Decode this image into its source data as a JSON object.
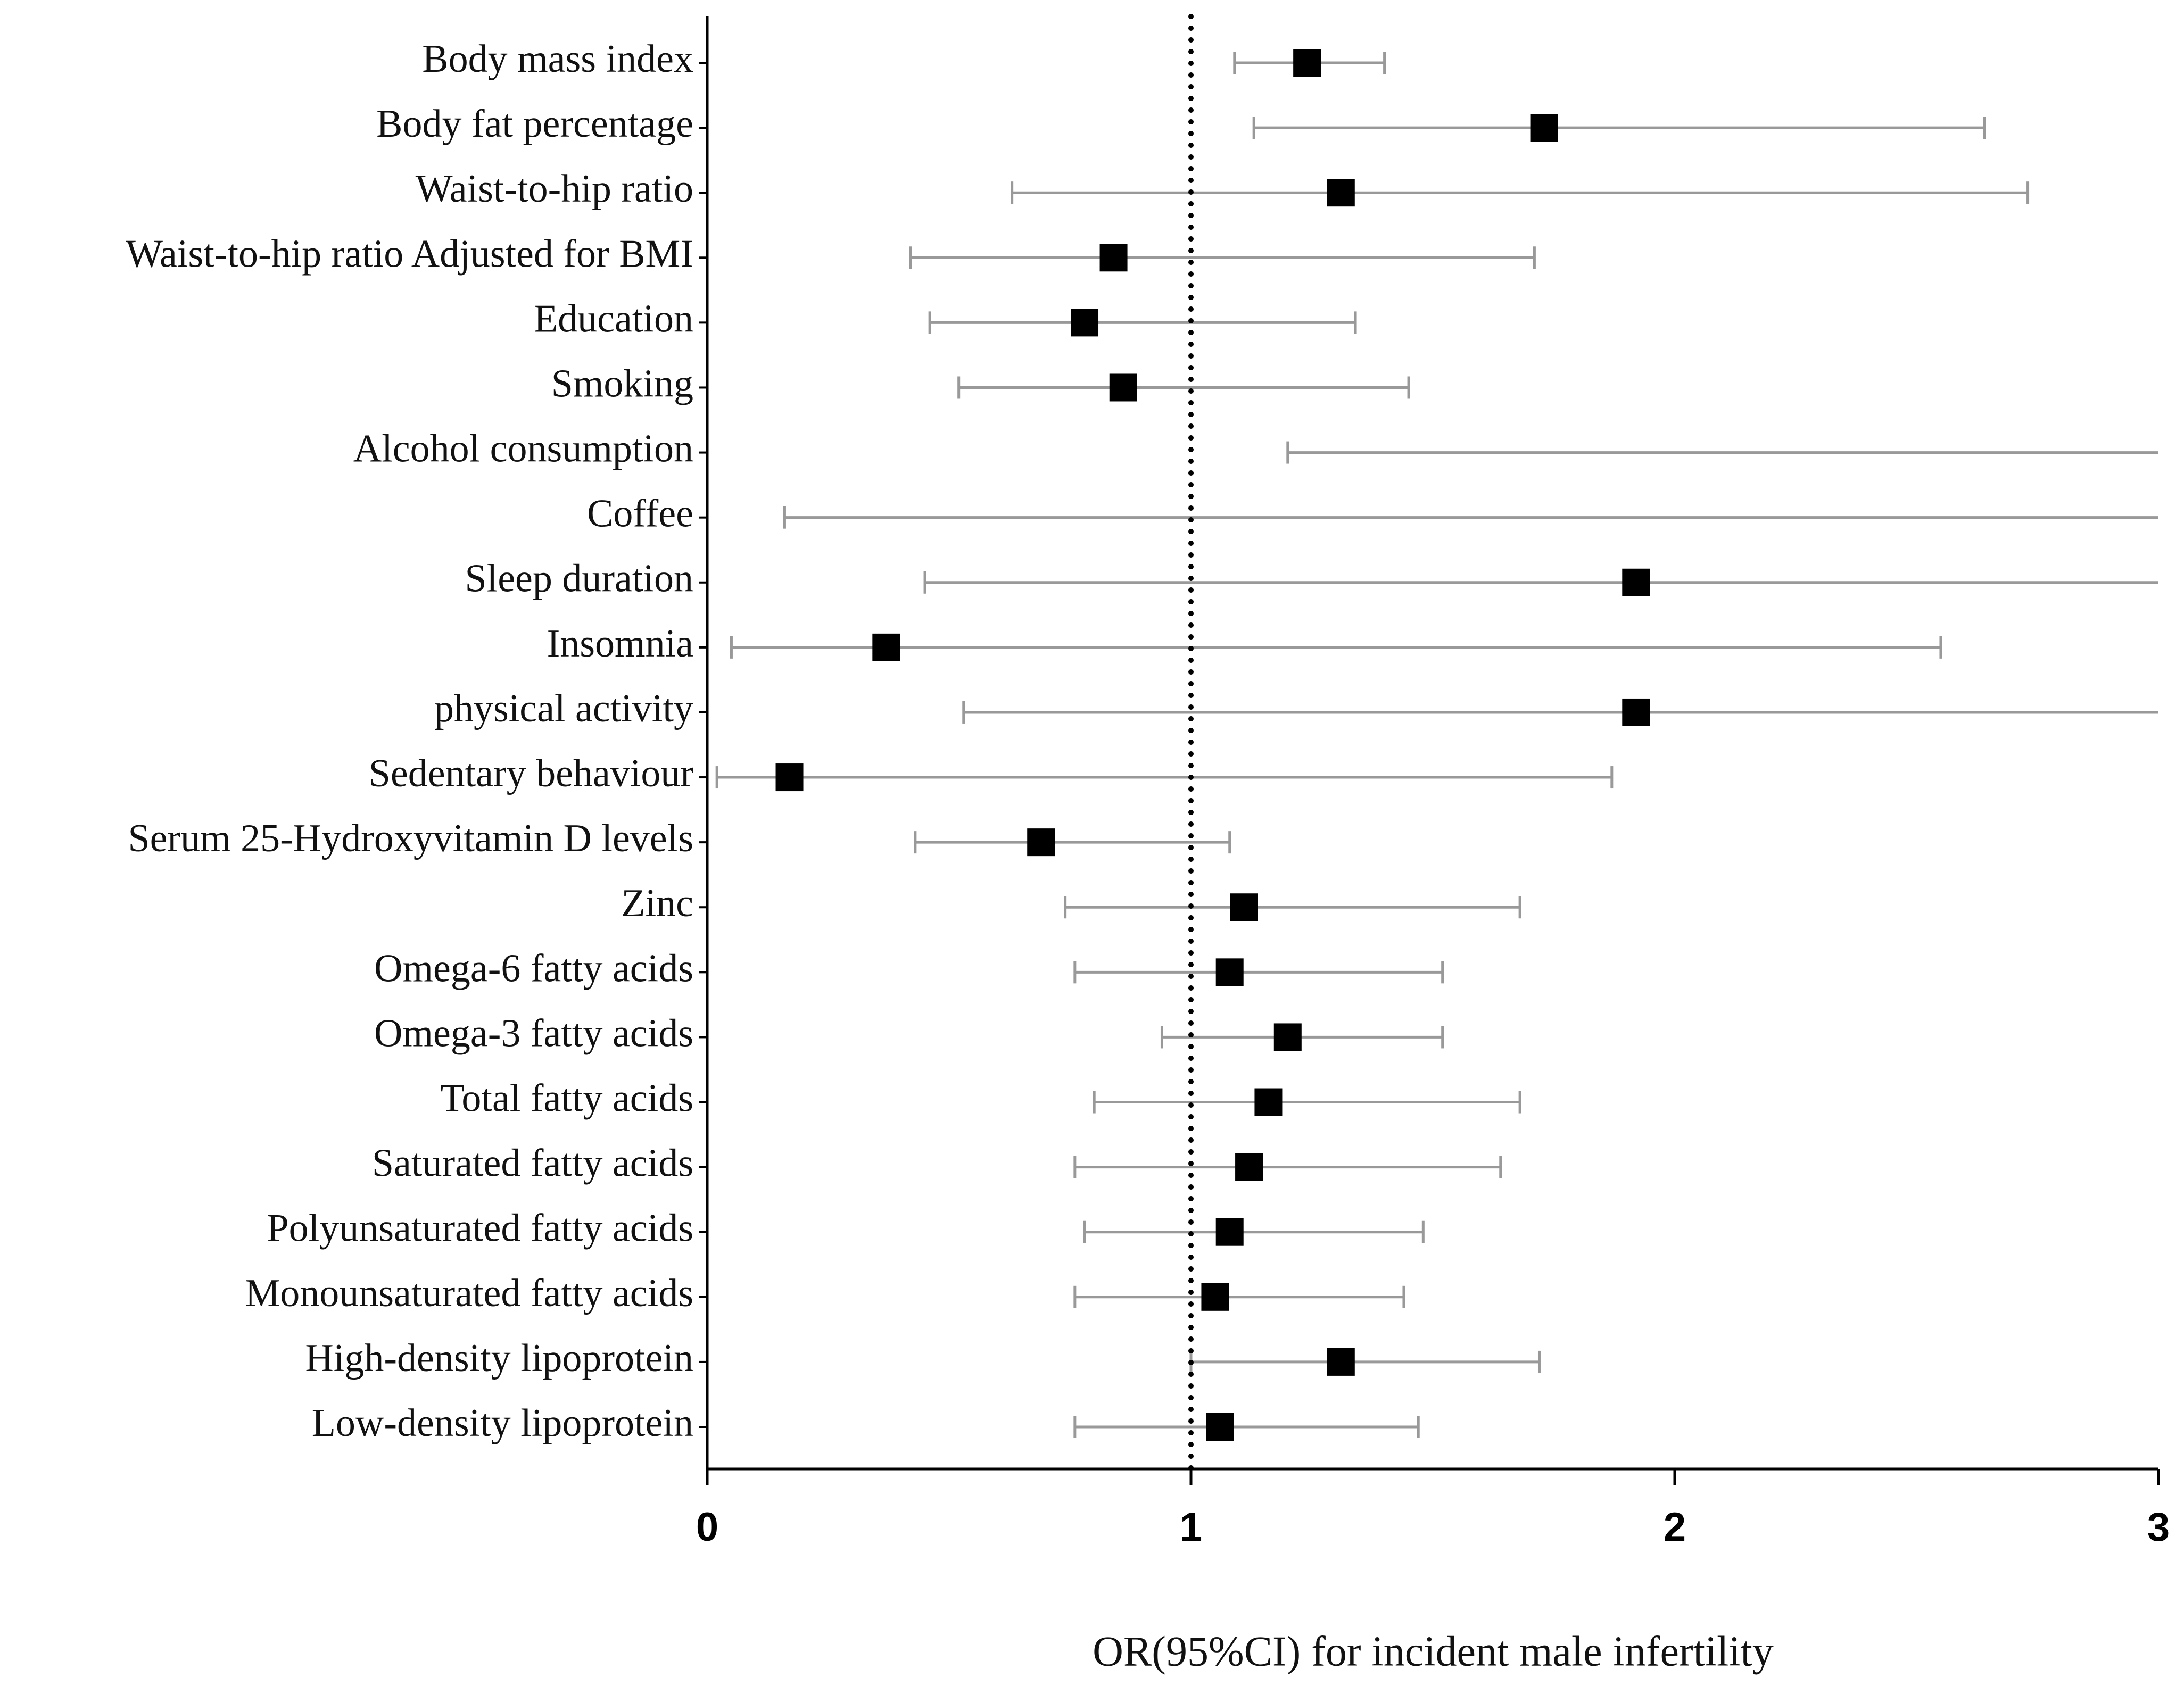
{
  "chart_data": {
    "type": "forest",
    "x_label": "OR(95%CI) for incident male infertility",
    "categories": [
      "Body mass index",
      "Body fat percentage",
      "Waist-to-hip ratio",
      "Waist-to-hip ratio Adjusted for BMI",
      "Education",
      "Smoking",
      "Alcohol consumption",
      "Coffee",
      "Sleep duration",
      "Insomnia",
      "physical activity",
      "Sedentary behaviour",
      "Serum 25-Hydroxyvitamin D levels",
      "Zinc",
      "Omega-6 fatty acids",
      "Omega-3 fatty acids",
      "Total fatty acids",
      "Saturated fatty acids",
      "Polyunsaturated fatty acids",
      "Monounsaturated fatty acids",
      "High-density lipoprotein",
      "Low-density lipoprotein"
    ],
    "values": [
      1.24,
      1.73,
      1.31,
      0.84,
      0.78,
      0.86,
      null,
      null,
      1.92,
      0.37,
      1.92,
      0.17,
      0.69,
      1.11,
      1.08,
      1.2,
      1.16,
      1.12,
      1.08,
      1.05,
      1.31,
      1.06
    ],
    "lower": [
      1.09,
      1.13,
      0.63,
      0.42,
      0.46,
      0.52,
      1.2,
      0.16,
      0.45,
      0.05,
      0.53,
      0.02,
      0.43,
      0.74,
      0.76,
      0.94,
      0.8,
      0.76,
      0.78,
      0.76,
      1.0,
      0.76
    ],
    "upper": [
      1.4,
      2.64,
      2.73,
      1.71,
      1.34,
      1.45,
      null,
      null,
      null,
      2.55,
      null,
      1.87,
      1.08,
      1.68,
      1.52,
      1.52,
      1.68,
      1.64,
      1.48,
      1.44,
      1.72,
      1.47
    ],
    "color": "#000000",
    "ci_color": "#999999",
    "reference_line": 1,
    "xlim": [
      0,
      3
    ],
    "xticks": [
      0,
      1,
      2,
      3
    ]
  }
}
